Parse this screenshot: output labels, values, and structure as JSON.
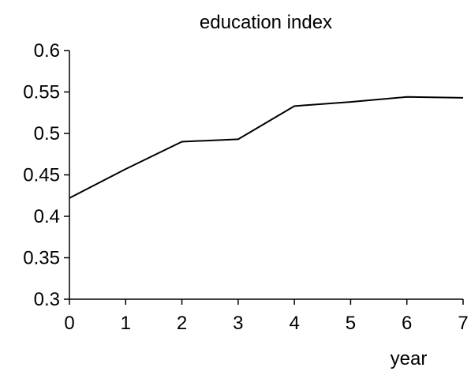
{
  "chart_data": {
    "type": "line",
    "title": "education index",
    "xlabel": "year",
    "ylabel": "",
    "x": [
      0,
      1,
      2,
      3,
      4,
      5,
      6,
      7
    ],
    "xlim": [
      0,
      7
    ],
    "ylim": [
      0.3,
      0.6
    ],
    "xticks": [
      "0",
      "1",
      "2",
      "3",
      "4",
      "5",
      "6",
      "7"
    ],
    "yticks": [
      "0.3",
      "0.35",
      "0.4",
      "0.45",
      "0.5",
      "0.55",
      "0.6"
    ],
    "grid": false,
    "legend": "none",
    "series": [
      {
        "values": [
          0.422,
          0.457,
          0.49,
          0.493,
          0.533,
          0.538,
          0.544,
          0.543
        ],
        "color": "#000000"
      }
    ]
  }
}
